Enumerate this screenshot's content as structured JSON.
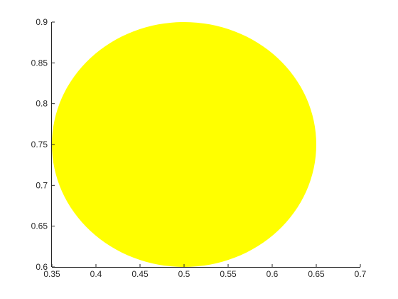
{
  "chart_data": {
    "type": "scatter",
    "title": "",
    "xlabel": "",
    "ylabel": "",
    "xlim": [
      0.35,
      0.7
    ],
    "ylim": [
      0.6,
      0.9
    ],
    "xticks": [
      0.35,
      0.4,
      0.45,
      0.5,
      0.55,
      0.6,
      0.65,
      0.7
    ],
    "yticks": [
      0.6,
      0.65,
      0.7,
      0.75,
      0.8,
      0.85,
      0.9
    ],
    "xtick_labels": [
      "0.35",
      "0.4",
      "0.45",
      "0.5",
      "0.55",
      "0.6",
      "0.65",
      "0.7"
    ],
    "ytick_labels": [
      "0.6",
      "0.65",
      "0.7",
      "0.75",
      "0.8",
      "0.85",
      "0.9"
    ],
    "grid": false,
    "legend": "none",
    "shapes": [
      {
        "kind": "ellipse",
        "center": [
          0.5,
          0.75
        ],
        "radius_x": 0.15,
        "radius_y": 0.15,
        "fill": "#ffff00"
      }
    ]
  }
}
